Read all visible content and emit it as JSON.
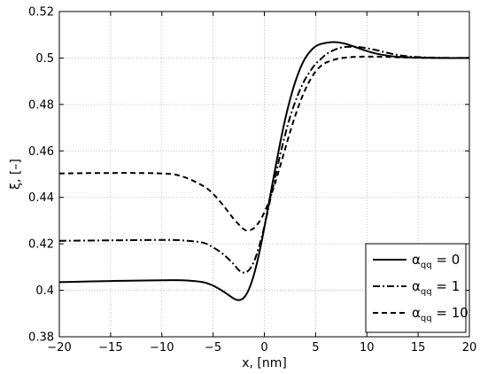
{
  "chart_data": {
    "type": "line",
    "xlabel": "x, [nm]",
    "ylabel": "ξ, [–]",
    "xlim": [
      -20,
      20
    ],
    "ylim": [
      0.38,
      0.52
    ],
    "xticks": [
      -20,
      -15,
      -10,
      -5,
      0,
      5,
      10,
      15,
      20
    ],
    "xtick_labels": [
      "−20",
      "−15",
      "−10",
      "−5",
      "0",
      "5",
      "10",
      "15",
      "20"
    ],
    "yticks": [
      0.38,
      0.4,
      0.42,
      0.44,
      0.46,
      0.48,
      0.5,
      0.52
    ],
    "ytick_labels": [
      "0.38",
      "0.4",
      "0.42",
      "0.44",
      "0.46",
      "0.48",
      "0.5",
      "0.52"
    ],
    "grid": true,
    "legend": {
      "placement": "bottom-right",
      "entries": [
        {
          "symbol": "α",
          "sub": "qq",
          "suffix": " = 0"
        },
        {
          "symbol": "α",
          "sub": "qq",
          "suffix": " = 1"
        },
        {
          "symbol": "α",
          "sub": "qq",
          "suffix": " = 10"
        }
      ]
    },
    "series": [
      {
        "style": "solid",
        "x": [
          -20,
          -15,
          -10,
          -8,
          -6,
          -5,
          -4,
          -3,
          -2.5,
          -2,
          -1.5,
          -1,
          -0.5,
          0,
          0.5,
          1,
          1.5,
          2,
          2.5,
          3,
          3.5,
          4,
          4.5,
          5,
          5.5,
          6,
          6.5,
          7,
          7.5,
          8,
          9,
          10,
          11,
          12,
          13,
          14,
          15,
          17,
          20
        ],
        "y": [
          0.4035,
          0.404,
          0.4043,
          0.4043,
          0.4035,
          0.402,
          0.3995,
          0.3965,
          0.3958,
          0.3968,
          0.4005,
          0.407,
          0.416,
          0.427,
          0.439,
          0.451,
          0.4625,
          0.473,
          0.482,
          0.4895,
          0.4955,
          0.5,
          0.503,
          0.505,
          0.506,
          0.5065,
          0.5068,
          0.5068,
          0.5065,
          0.506,
          0.5045,
          0.503,
          0.5018,
          0.501,
          0.5005,
          0.5003,
          0.5001,
          0.5,
          0.5
        ]
      },
      {
        "style": "dashdot",
        "x": [
          -20,
          -15,
          -10,
          -8,
          -6,
          -5,
          -4,
          -3,
          -2.5,
          -2,
          -1.5,
          -1,
          -0.5,
          0,
          0.5,
          1,
          1.5,
          2,
          2.5,
          3,
          3.5,
          4,
          4.5,
          5,
          5.5,
          6,
          6.5,
          7,
          7.5,
          8,
          9,
          10,
          11,
          12,
          13,
          14,
          15,
          17,
          20
        ],
        "y": [
          0.4213,
          0.4215,
          0.4217,
          0.4215,
          0.4205,
          0.4185,
          0.4155,
          0.4113,
          0.4087,
          0.4076,
          0.4087,
          0.4125,
          0.419,
          0.4275,
          0.4375,
          0.4475,
          0.4575,
          0.4665,
          0.4745,
          0.481,
          0.4865,
          0.491,
          0.4945,
          0.4975,
          0.4995,
          0.5015,
          0.5028,
          0.5038,
          0.5045,
          0.5048,
          0.5048,
          0.5042,
          0.5033,
          0.5022,
          0.5013,
          0.5007,
          0.5004,
          0.5001,
          0.5
        ]
      },
      {
        "style": "dashed",
        "x": [
          -20,
          -15,
          -10,
          -8,
          -6,
          -5,
          -4,
          -3,
          -2,
          -1.5,
          -1,
          -0.5,
          0,
          0.5,
          1,
          1.5,
          2,
          2.5,
          3,
          3.5,
          4,
          4.5,
          5,
          5.5,
          6,
          7,
          8,
          9,
          10,
          11,
          12,
          13,
          14,
          15,
          17,
          20
        ],
        "y": [
          0.4503,
          0.4505,
          0.4503,
          0.449,
          0.445,
          0.4415,
          0.4365,
          0.4308,
          0.4263,
          0.4258,
          0.4268,
          0.4295,
          0.4335,
          0.439,
          0.4455,
          0.4528,
          0.4605,
          0.468,
          0.475,
          0.4812,
          0.4865,
          0.4908,
          0.4942,
          0.4965,
          0.498,
          0.4995,
          0.5002,
          0.5005,
          0.5006,
          0.5006,
          0.5005,
          0.5003,
          0.5002,
          0.5001,
          0.5,
          0.5
        ]
      }
    ]
  }
}
